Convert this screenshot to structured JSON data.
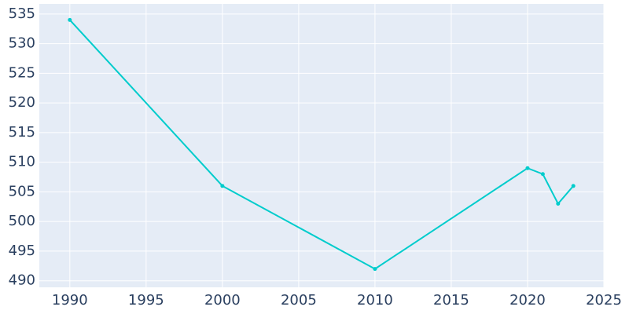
{
  "chart_data": {
    "type": "line",
    "x": [
      1990,
      2000,
      2010,
      2020,
      2021,
      2022,
      2023
    ],
    "series": [
      {
        "color": "#00cccc",
        "values": [
          534,
          506,
          492,
          509,
          508,
          503,
          506
        ]
      }
    ],
    "xlim": [
      1988,
      2025
    ],
    "ylim": [
      488.9,
      536.7
    ],
    "xticks": [
      1990,
      1995,
      2000,
      2005,
      2010,
      2015,
      2020,
      2025
    ],
    "yticks": [
      490,
      495,
      500,
      505,
      510,
      515,
      520,
      525,
      530,
      535
    ],
    "grid": true,
    "background": "#e5ecf6"
  }
}
